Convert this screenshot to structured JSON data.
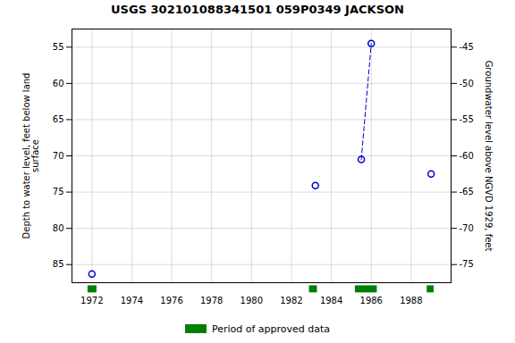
{
  "chart_data": {
    "type": "scatter",
    "title": "USGS 302101088341501 059P0349  JACKSON",
    "ylabel": "Depth to water level, feet below land\nsurface",
    "y2label": "Groundwater level above NGVD 1929, feet",
    "x": [
      1972.0,
      1983.2,
      1985.5,
      1986.0,
      1989.0
    ],
    "series": [
      {
        "type": "scatter",
        "marker": "circle",
        "color": "#0000cc",
        "values": [
          86.3,
          74.1,
          70.5,
          54.5,
          72.5
        ]
      },
      {
        "type": "line",
        "line_style": "dashed",
        "color": "#0000cc",
        "x": [
          1985.5,
          1986.0
        ],
        "values": [
          70.5,
          54.5
        ]
      }
    ],
    "xlim": [
      1971.0,
      1990.0
    ],
    "xticks": [
      1972,
      1974,
      1976,
      1978,
      1980,
      1982,
      1984,
      1986,
      1988
    ],
    "ylim": [
      87.5,
      52.5
    ],
    "yticks": [
      55,
      60,
      65,
      70,
      75,
      80,
      85
    ],
    "y2lim": [
      -77.5,
      -42.5
    ],
    "y2ticks": [
      -45,
      -50,
      -55,
      -60,
      -65,
      -70,
      -75
    ],
    "grid": true,
    "approved_periods": [
      {
        "start": 1971.8,
        "end": 1972.25
      },
      {
        "start": 1982.9,
        "end": 1983.3
      },
      {
        "start": 1985.2,
        "end": 1986.3
      },
      {
        "start": 1988.8,
        "end": 1989.15
      }
    ],
    "approved_color": "#008000",
    "approved_label": "Period of approved data",
    "legend": "bottom"
  }
}
